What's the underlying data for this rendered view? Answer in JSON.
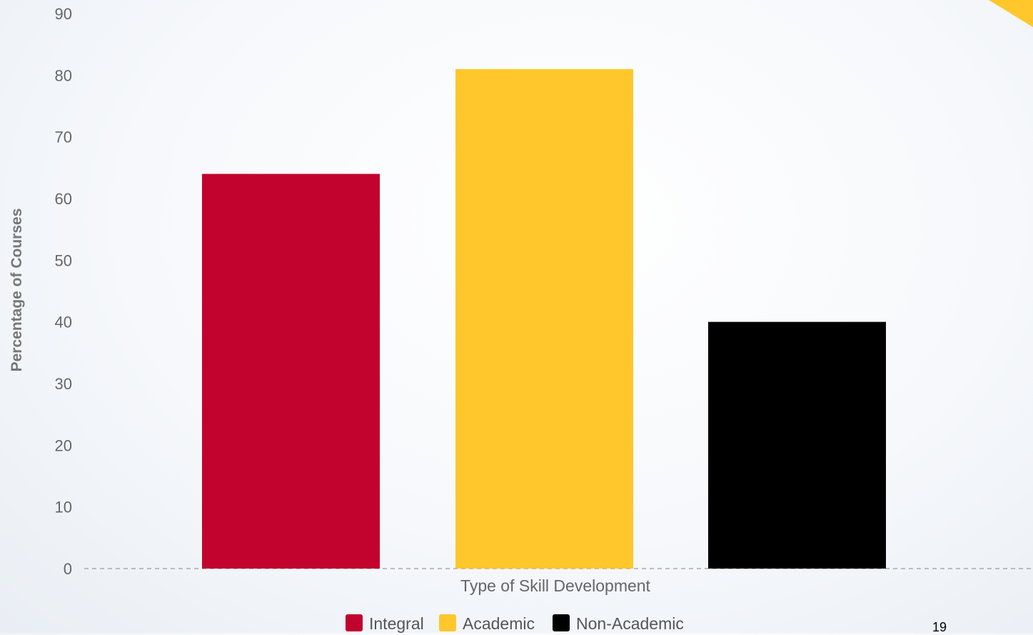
{
  "chart_data": {
    "type": "bar",
    "xlabel": "Type of Skill Development",
    "ylabel": "Percentage of Courses",
    "ylim": [
      0,
      90
    ],
    "yticks": [
      0,
      10,
      20,
      30,
      40,
      50,
      60,
      70,
      80,
      90
    ],
    "categories": [
      "Integral",
      "Academic",
      "Non-Academic"
    ],
    "values": [
      64,
      81,
      40
    ],
    "colors": [
      "#c1032e",
      "#ffc72c",
      "#000000"
    ],
    "legend": {
      "placement": "bottom",
      "entries": [
        {
          "label": "Integral",
          "color": "#c1032e"
        },
        {
          "label": "Academic",
          "color": "#ffc72c"
        },
        {
          "label": "Non-Academic",
          "color": "#000000"
        }
      ]
    },
    "grid": false
  },
  "slide": {
    "page_number": "19",
    "corner_color": "#ffc72c"
  }
}
